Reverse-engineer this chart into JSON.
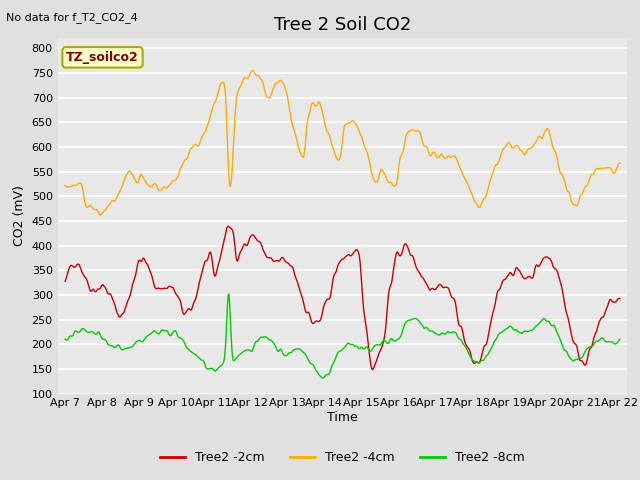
{
  "title": "Tree 2 Soil CO2",
  "top_left_note": "No data for f_T2_CO2_4",
  "ylabel": "CO2 (mV)",
  "xlabel": "Time",
  "ylim": [
    100,
    820
  ],
  "yticks": [
    100,
    150,
    200,
    250,
    300,
    350,
    400,
    450,
    500,
    550,
    600,
    650,
    700,
    750,
    800
  ],
  "bg_color": "#e0e0e0",
  "plot_bg": "#e8e8e8",
  "grid_color": "white",
  "annotation_box": "TZ_soilco2",
  "annotation_box_bg": "#ffffcc",
  "annotation_box_border": "#aaaa00",
  "series": {
    "red": {
      "label": "Tree2 -2cm",
      "color": "#cc0000"
    },
    "orange": {
      "label": "Tree2 -4cm",
      "color": "#ffaa00"
    },
    "green": {
      "label": "Tree2 -8cm",
      "color": "#00cc00"
    }
  },
  "x_tick_labels": [
    "Apr 7",
    "Apr 8",
    "Apr 9",
    "Apr 10",
    "Apr 11",
    "Apr 12",
    "Apr 13",
    "Apr 14",
    "Apr 15",
    "Apr 16",
    "Apr 17",
    "Apr 18",
    "Apr 19",
    "Apr 20",
    "Apr 21",
    "Apr 22"
  ],
  "title_fontsize": 13,
  "axis_label_fontsize": 9,
  "tick_fontsize": 8,
  "legend_fontsize": 9
}
